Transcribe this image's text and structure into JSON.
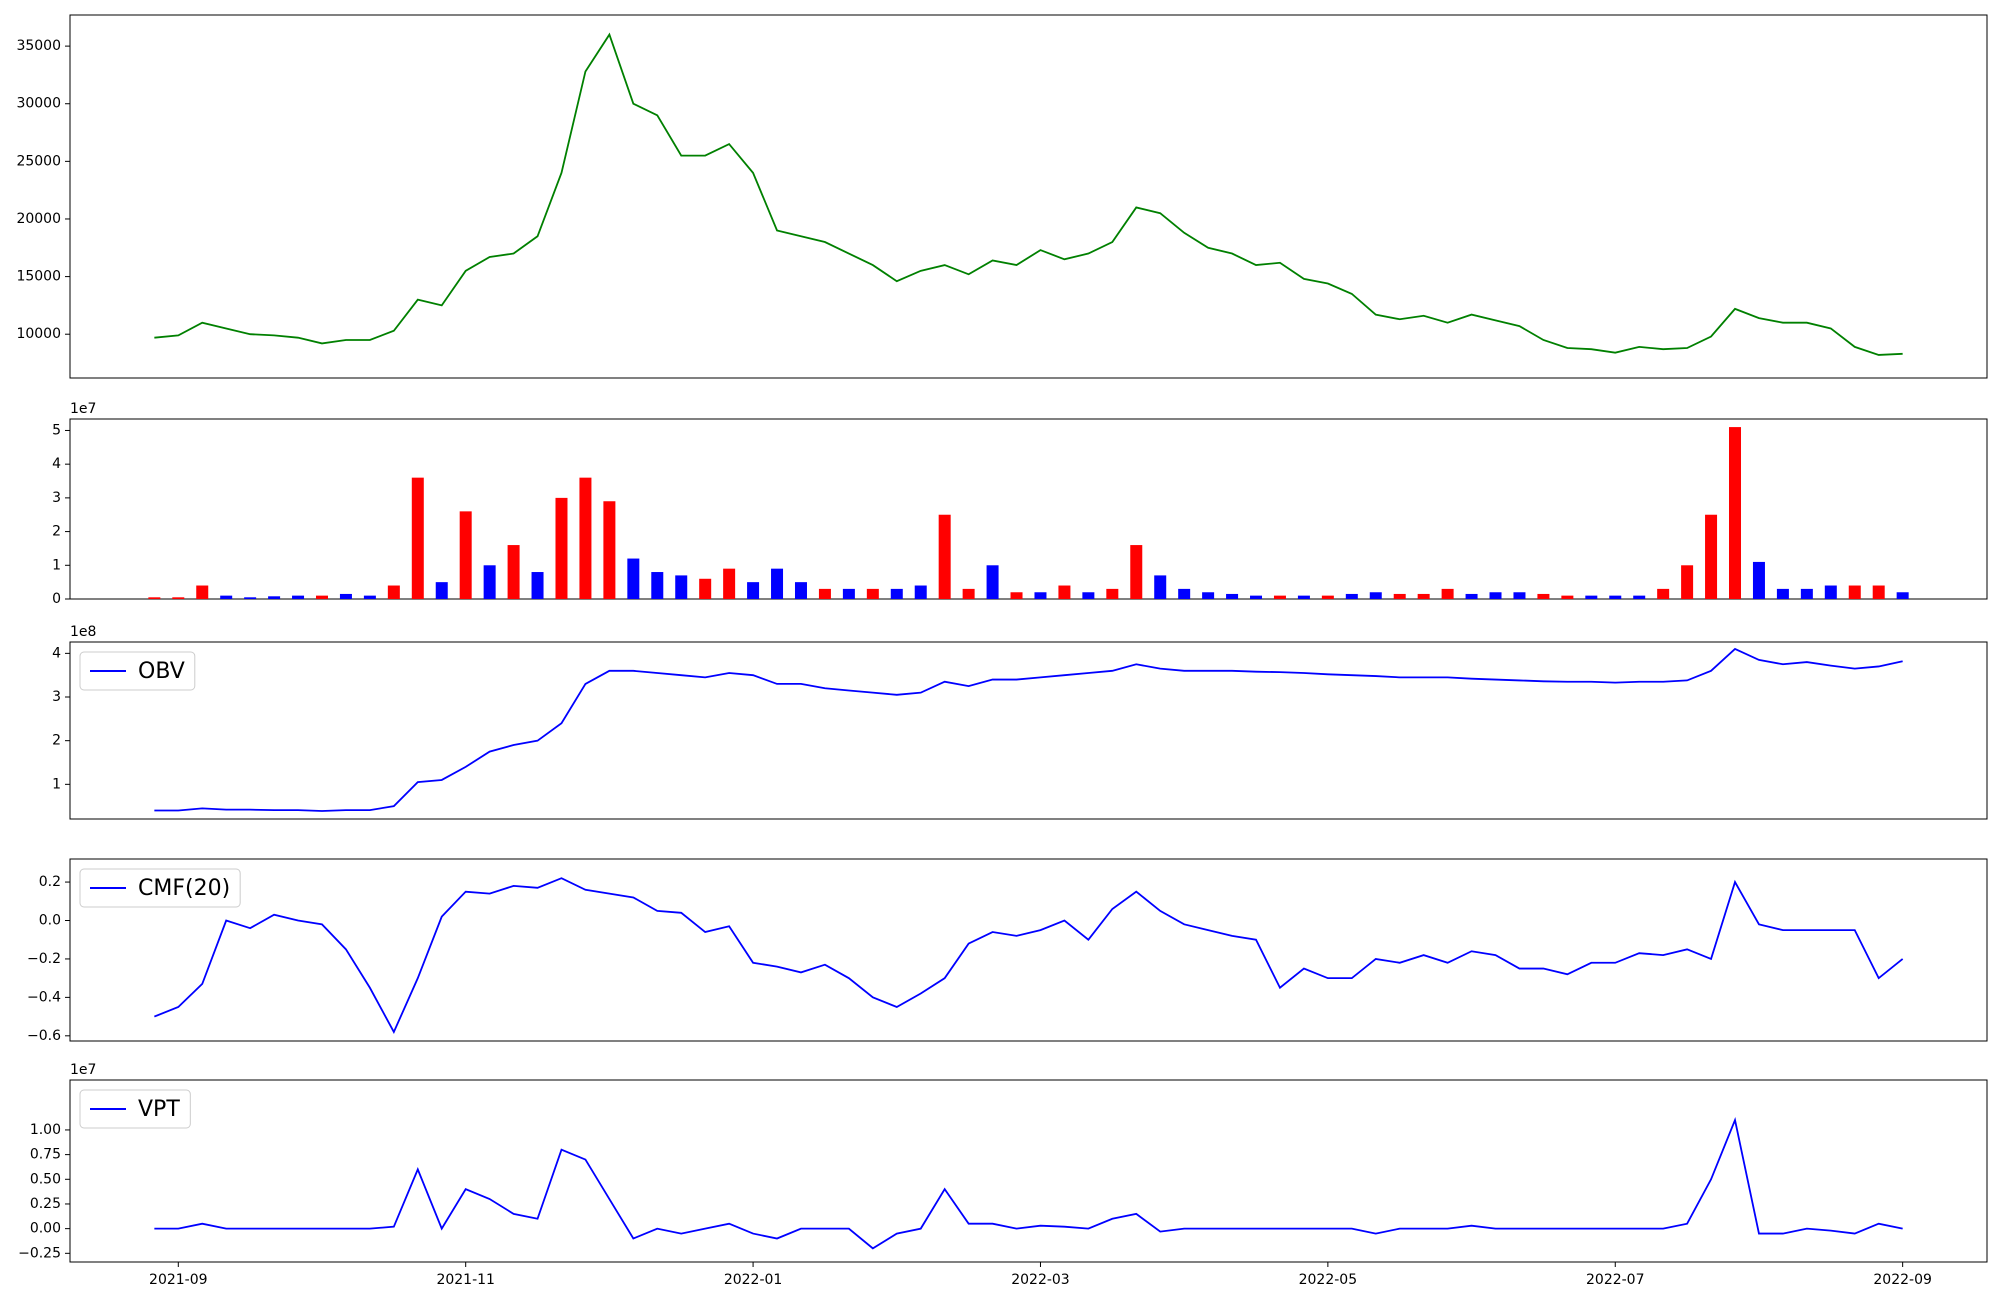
{
  "chart_data": [
    {
      "type": "line",
      "ylim": [
        6200,
        37700
      ],
      "yticks": [
        10000,
        15000,
        20000,
        25000,
        30000,
        35000
      ],
      "legend": false,
      "series": [
        {
          "color": "green",
          "values": [
            9700,
            9900,
            11000,
            10500,
            10000,
            9900,
            9700,
            9200,
            9500,
            9500,
            10300,
            13000,
            12500,
            15500,
            16700,
            17000,
            18500,
            24000,
            32800,
            36000,
            30000,
            29000,
            25500,
            25500,
            26500,
            24000,
            19000,
            18500,
            18000,
            17000,
            16000,
            14600,
            15500,
            16000,
            15200,
            16400,
            16000,
            17300,
            16500,
            17000,
            18000,
            21000,
            20500,
            18800,
            17500,
            17000,
            16000,
            16200,
            14800,
            14400,
            13500,
            11700,
            11300,
            11600,
            11000,
            11700,
            11200,
            10700,
            9500,
            8800,
            8700,
            8400,
            8900,
            8700,
            8800,
            9800,
            12200,
            11400,
            11000,
            11000,
            10500,
            8900,
            8200,
            8300
          ]
        }
      ]
    },
    {
      "type": "bar",
      "ylim": [
        0,
        53400000
      ],
      "y_offset_label": "1e7",
      "yticks": [
        0,
        {
          "value": 10000000,
          "label": "1"
        },
        {
          "value": 20000000,
          "label": "2"
        },
        {
          "value": 30000000,
          "label": "3"
        },
        {
          "value": 40000000,
          "label": "4"
        },
        {
          "value": 50000000,
          "label": "5"
        }
      ],
      "values": [
        500000,
        500000,
        4000000,
        1000000,
        500000,
        800000,
        1000000,
        1000000,
        1500000,
        1000000,
        4000000,
        36000000,
        5000000,
        26000000,
        10000000,
        16000000,
        8000000,
        30000000,
        36000000,
        29000000,
        12000000,
        8000000,
        7000000,
        6000000,
        9000000,
        5000000,
        9000000,
        5000000,
        3000000,
        3000000,
        3000000,
        3000000,
        4000000,
        25000000,
        3000000,
        10000000,
        2000000,
        2000000,
        4000000,
        2000000,
        3000000,
        16000000,
        7000000,
        3000000,
        2000000,
        1500000,
        1000000,
        1000000,
        1000000,
        1000000,
        1500000,
        2000000,
        1500000,
        1500000,
        3000000,
        1500000,
        2000000,
        2000000,
        1500000,
        1000000,
        1000000,
        1000000,
        1000000,
        3000000,
        10000000,
        25000000,
        51000000,
        11000000,
        3000000,
        3000000,
        4000000,
        4000000,
        4000000,
        2000000
      ],
      "colors": [
        "red",
        "red",
        "red",
        "blue",
        "blue",
        "blue",
        "blue",
        "red",
        "blue",
        "blue",
        "red",
        "red",
        "blue",
        "red",
        "blue",
        "red",
        "blue",
        "red",
        "red",
        "red",
        "blue",
        "blue",
        "blue",
        "red",
        "red",
        "blue",
        "blue",
        "blue",
        "red",
        "blue",
        "red",
        "blue",
        "blue",
        "red",
        "red",
        "blue",
        "red",
        "blue",
        "red",
        "blue",
        "red",
        "red",
        "blue",
        "blue",
        "blue",
        "blue",
        "blue",
        "red",
        "blue",
        "red",
        "blue",
        "blue",
        "red",
        "red",
        "red",
        "blue",
        "blue",
        "blue",
        "red",
        "red",
        "blue",
        "blue",
        "blue",
        "red",
        "red",
        "red",
        "red",
        "blue",
        "blue",
        "blue",
        "blue",
        "red",
        "red",
        "blue"
      ]
    },
    {
      "type": "line",
      "ylim": [
        20600000,
        426000000
      ],
      "y_offset_label": "1e8",
      "legend": "upper left",
      "yticks": [
        {
          "value": 100000000,
          "label": "1"
        },
        {
          "value": 200000000,
          "label": "2"
        },
        {
          "value": 300000000,
          "label": "3"
        },
        {
          "value": 400000000,
          "label": "4"
        }
      ],
      "series": [
        {
          "name": "OBV",
          "color": "blue",
          "values": [
            40000000,
            40000000,
            45000000,
            42000000,
            42000000,
            41000000,
            41000000,
            39000000,
            41000000,
            41000000,
            50000000,
            105000000,
            110000000,
            140000000,
            175000000,
            190000000,
            200000000,
            240000000,
            330000000,
            360000000,
            360000000,
            355000000,
            350000000,
            345000000,
            355000000,
            350000000,
            330000000,
            330000000,
            320000000,
            315000000,
            310000000,
            305000000,
            310000000,
            335000000,
            325000000,
            340000000,
            340000000,
            345000000,
            350000000,
            355000000,
            360000000,
            375000000,
            365000000,
            360000000,
            360000000,
            360000000,
            358000000,
            357000000,
            355000000,
            352000000,
            350000000,
            348000000,
            345000000,
            345000000,
            345000000,
            342000000,
            340000000,
            338000000,
            336000000,
            335000000,
            335000000,
            333000000,
            335000000,
            335000000,
            338000000,
            360000000,
            410000000,
            385000000,
            375000000,
            380000000,
            372000000,
            365000000,
            370000000,
            382000000
          ]
        }
      ]
    },
    {
      "type": "line",
      "ylim": [
        -0.627,
        0.32
      ],
      "legend": "upper left",
      "yticks": [
        {
          "value": -0.6,
          "label": "−0.6"
        },
        {
          "value": -0.4,
          "label": "−0.4"
        },
        {
          "value": -0.2,
          "label": "−0.2"
        },
        {
          "value": 0,
          "label": "0.0"
        },
        0.2
      ],
      "series": [
        {
          "name": "CMF(20)",
          "color": "blue",
          "values": [
            -0.5,
            -0.45,
            -0.33,
            0.0,
            -0.04,
            0.03,
            0.0,
            -0.02,
            -0.15,
            -0.35,
            -0.58,
            -0.3,
            0.02,
            0.15,
            0.14,
            0.18,
            0.17,
            0.22,
            0.16,
            0.14,
            0.12,
            0.05,
            0.04,
            -0.06,
            -0.03,
            -0.22,
            -0.24,
            -0.27,
            -0.23,
            -0.3,
            -0.4,
            -0.45,
            -0.38,
            -0.3,
            -0.12,
            -0.06,
            -0.08,
            -0.05,
            0.0,
            -0.1,
            0.06,
            0.15,
            0.05,
            -0.02,
            -0.05,
            -0.08,
            -0.1,
            -0.35,
            -0.25,
            -0.3,
            -0.3,
            -0.2,
            -0.22,
            -0.18,
            -0.22,
            -0.16,
            -0.18,
            -0.25,
            -0.25,
            -0.28,
            -0.22,
            -0.22,
            -0.17,
            -0.18,
            -0.15,
            -0.2,
            0.2,
            -0.02,
            -0.05,
            -0.05,
            -0.05,
            -0.05,
            -0.3,
            -0.2
          ]
        }
      ]
    },
    {
      "type": "line",
      "ylim": [
        -3380000,
        15060000
      ],
      "y_offset_label": "1e7",
      "legend": "upper left",
      "yticks": [
        {
          "value": -2500000,
          "label": "−0.25"
        },
        {
          "value": 0,
          "label": "0.00"
        },
        {
          "value": 2500000,
          "label": "0.25"
        },
        {
          "value": 5000000,
          "label": "0.50"
        },
        {
          "value": 7500000,
          "label": "0.75"
        },
        {
          "value": 10000000,
          "label": "1.00"
        }
      ],
      "categories": [
        null,
        "2021-09",
        null,
        null,
        null,
        null,
        null,
        null,
        null,
        null,
        null,
        null,
        null,
        "2021-11",
        null,
        null,
        null,
        null,
        null,
        null,
        null,
        null,
        null,
        null,
        null,
        "2022-01",
        null,
        null,
        null,
        null,
        null,
        null,
        null,
        null,
        null,
        null,
        null,
        "2022-03",
        null,
        null,
        null,
        null,
        null,
        null,
        null,
        null,
        null,
        null,
        null,
        "2022-05",
        null,
        null,
        null,
        null,
        null,
        null,
        null,
        null,
        null,
        null,
        null,
        "2022-07",
        null,
        null,
        null,
        null,
        null,
        null,
        null,
        null,
        null,
        null,
        null,
        "2022-09"
      ],
      "series": [
        {
          "name": "VPT",
          "color": "blue",
          "values": [
            0,
            0,
            500000,
            0,
            0,
            0,
            0,
            0,
            0,
            0,
            200000,
            6000000,
            0,
            4000000,
            3000000,
            1500000,
            1000000,
            8000000,
            7000000,
            3000000,
            -1000000,
            0,
            -500000,
            0,
            500000,
            -500000,
            -1000000,
            0,
            0,
            0,
            -2000000,
            -500000,
            0,
            4000000,
            500000,
            500000,
            0,
            300000,
            200000,
            0,
            1000000,
            1500000,
            -300000,
            0,
            0,
            0,
            0,
            0,
            0,
            0,
            0,
            -500000,
            0,
            0,
            0,
            300000,
            0,
            0,
            0,
            0,
            0,
            0,
            0,
            0,
            500000,
            5000000,
            11000000,
            -500000,
            -500000,
            0,
            -200000,
            -500000,
            500000,
            0
          ]
        }
      ]
    }
  ]
}
